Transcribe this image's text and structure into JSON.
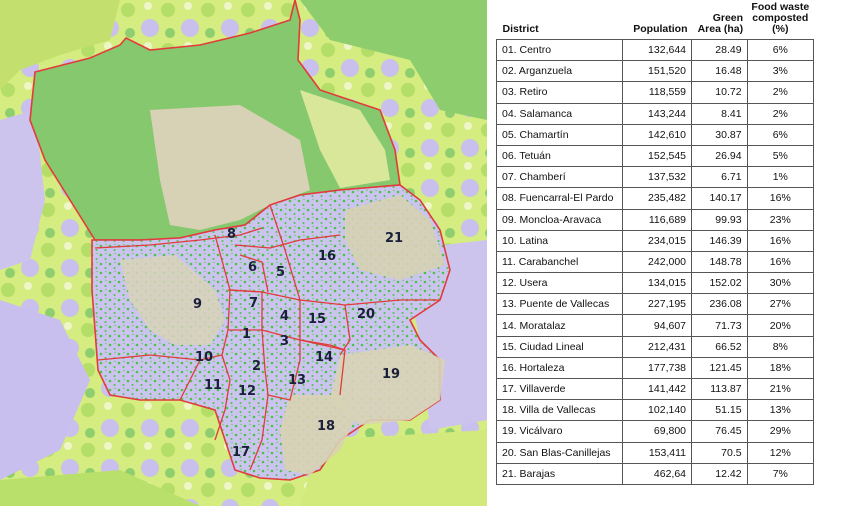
{
  "table": {
    "headers": {
      "district": "District",
      "population": "Population",
      "green_area": [
        "Green",
        "Area (ha)"
      ],
      "food_waste": [
        "Food waste",
        "composted",
        "(%)"
      ]
    },
    "rows": [
      {
        "district": "01. Centro",
        "population": "132,644",
        "green_area": "28.49",
        "food_waste": "6%"
      },
      {
        "district": "02. Arganzuela",
        "population": "151,520",
        "green_area": "16.48",
        "food_waste": "3%"
      },
      {
        "district": "03. Retiro",
        "population": "118,559",
        "green_area": "10.72",
        "food_waste": "2%"
      },
      {
        "district": "04. Salamanca",
        "population": "143,244",
        "green_area": "8.41",
        "food_waste": "2%"
      },
      {
        "district": "05. Chamartín",
        "population": "142,610",
        "green_area": "30.87",
        "food_waste": "6%"
      },
      {
        "district": "06. Tetuán",
        "population": "152,545",
        "green_area": "26.94",
        "food_waste": "5%"
      },
      {
        "district": "07. Chamberí",
        "population": "137,532",
        "green_area": "6.71",
        "food_waste": "1%"
      },
      {
        "district": "08. Fuencarral-El Pardo",
        "population": "235,482",
        "green_area": "140.17",
        "food_waste": "16%"
      },
      {
        "district": "09. Moncloa-Aravaca",
        "population": "116,689",
        "green_area": "99.93",
        "food_waste": "23%"
      },
      {
        "district": "10. Latina",
        "population": "234,015",
        "green_area": "146.39",
        "food_waste": "16%"
      },
      {
        "district": "11. Carabanchel",
        "population": "242,000",
        "green_area": "148.78",
        "food_waste": "16%"
      },
      {
        "district": "12. Usera",
        "population": "134,015",
        "green_area": "152.02",
        "food_waste": "30%"
      },
      {
        "district": "13. Puente de Vallecas",
        "population": "227,195",
        "green_area": "236.08",
        "food_waste": "27%"
      },
      {
        "district": "14. Moratalaz",
        "population": "94,607",
        "green_area": "71.73",
        "food_waste": "20%"
      },
      {
        "district": "15. Ciudad Lineal",
        "population": "212,431",
        "green_area": "66.52",
        "food_waste": "8%"
      },
      {
        "district": "16. Hortaleza",
        "population": "177,738",
        "green_area": "121.45",
        "food_waste": "18%"
      },
      {
        "district": "17. Villaverde",
        "population": "141,442",
        "green_area": "113.87",
        "food_waste": "21%"
      },
      {
        "district": "18. Villa de Vallecas",
        "population": "102,140",
        "green_area": "51.15",
        "food_waste": "13%"
      },
      {
        "district": "19. Vicálvaro",
        "population": "69,800",
        "green_area": "76.45",
        "food_waste": "29%"
      },
      {
        "district": "20. San Blas-Canillejas",
        "population": "153,411",
        "green_area": "70.5",
        "food_waste": "12%"
      },
      {
        "district": "21. Barajas",
        "population": "462,64",
        "green_area": "12.42",
        "food_waste": "7%"
      }
    ]
  },
  "map": {
    "district_labels": [
      "1",
      "2",
      "3",
      "4",
      "5",
      "6",
      "7",
      "8",
      "9",
      "10",
      "11",
      "12",
      "13",
      "14",
      "15",
      "16",
      "17",
      "18",
      "19",
      "20",
      "21"
    ],
    "colors": {
      "boundary": "#e23b3b",
      "urban": "#c9c2ec",
      "urban_green": "#41c23e",
      "forest": "#7fc56b",
      "light_green": "#d2ea7c",
      "lime": "#b9e06a",
      "open_land": "#d8d3b9",
      "lavender": "#cfc5ef"
    }
  }
}
